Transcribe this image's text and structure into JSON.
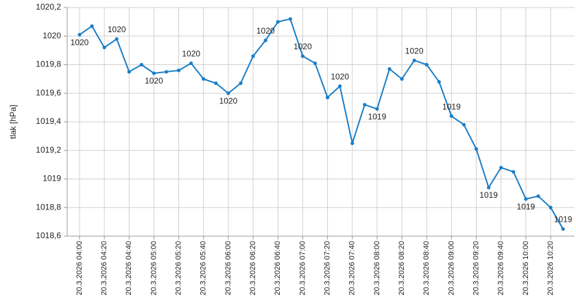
{
  "chart_data": {
    "type": "line",
    "y_label": "tlak [hPa]",
    "categories": [
      "20.3.2026 04:00",
      null,
      "20.3.2026 04:20",
      null,
      "20.3.2026 04:40",
      null,
      "20.3.2026 05:00",
      null,
      "20.3.2026 05:20",
      null,
      "20.3.2026 05:40",
      null,
      "20.3.2026 06:00",
      null,
      "20.3.2026 06:20",
      null,
      "20.3.2026 06:40",
      null,
      "20.3.2026 07:00",
      null,
      "20.3.2026 07:20",
      null,
      "20.3.2026 07:40",
      null,
      "20.3.2026 08:00",
      null,
      "20.3.2026 08:20",
      null,
      "20.3.2026 08:40",
      null,
      "20.3.2026 09:00",
      null,
      "20.3.2026 09:20",
      null,
      "20.3.2026 09:40",
      null,
      "20.3.2026 10:00",
      null,
      "20.3.2026 10:20",
      null
    ],
    "values": [
      1020.01,
      1020.07,
      1019.92,
      1019.98,
      1019.75,
      1019.8,
      1019.74,
      1019.75,
      1019.76,
      1019.81,
      1019.7,
      1019.67,
      1019.6,
      1019.67,
      1019.86,
      1019.97,
      1020.1,
      1020.12,
      1019.86,
      1019.81,
      1019.57,
      1019.65,
      1019.25,
      1019.52,
      1019.49,
      1019.77,
      1019.7,
      1019.83,
      1019.8,
      1019.68,
      1019.44,
      1019.38,
      1019.21,
      1018.94,
      1019.08,
      1019.05,
      1018.86,
      1018.88,
      1018.8,
      1018.65
    ],
    "value_labels": [
      "1020",
      null,
      null,
      "1020",
      null,
      null,
      "1020",
      null,
      null,
      "1020",
      null,
      null,
      "1020",
      null,
      null,
      "1020",
      null,
      null,
      "1020",
      null,
      null,
      "1020",
      null,
      null,
      "1019",
      null,
      null,
      "1020",
      null,
      null,
      "1019",
      null,
      null,
      "1019",
      null,
      null,
      "1019",
      null,
      null,
      "1019"
    ],
    "color": "#1a7dc6",
    "ylim": [
      1018.6,
      1020.2
    ],
    "yticks": [
      {
        "value": 1018.6,
        "label": "1018,6"
      },
      {
        "value": 1018.8,
        "label": "1018,8"
      },
      1019,
      {
        "value": 1019.2,
        "label": "1019,2"
      },
      {
        "value": 1019.4,
        "label": "1019,4"
      },
      {
        "value": 1019.6,
        "label": "1019,6"
      },
      {
        "value": 1019.8,
        "label": "1019,8"
      },
      1020,
      {
        "value": 1020.2,
        "label": "1020,2"
      }
    ],
    "grid": true
  }
}
